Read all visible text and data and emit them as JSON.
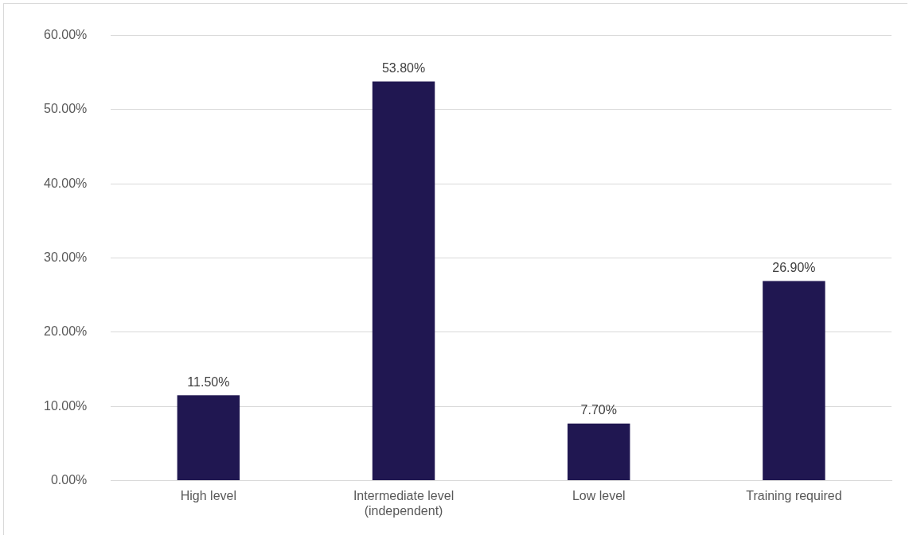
{
  "chart_data": {
    "type": "bar",
    "categories": [
      "High level",
      "Intermediate level (independent)",
      "Low level",
      "Training required"
    ],
    "values": [
      11.5,
      53.8,
      7.7,
      26.9
    ],
    "value_labels": [
      "11.50%",
      "53.80%",
      "7.70%",
      "26.90%"
    ],
    "color": "#201751",
    "ylim": [
      0,
      60
    ],
    "yticks": [
      {
        "value": 0,
        "label": "0.00%"
      },
      {
        "value": 10,
        "label": "10.00%"
      },
      {
        "value": 20,
        "label": "20.00%"
      },
      {
        "value": 30,
        "label": "30.00%"
      },
      {
        "value": 40,
        "label": "40.00%"
      },
      {
        "value": 50,
        "label": "50.00%"
      },
      {
        "value": 60,
        "label": "60.00%"
      }
    ],
    "grid": "y",
    "legend": false
  }
}
